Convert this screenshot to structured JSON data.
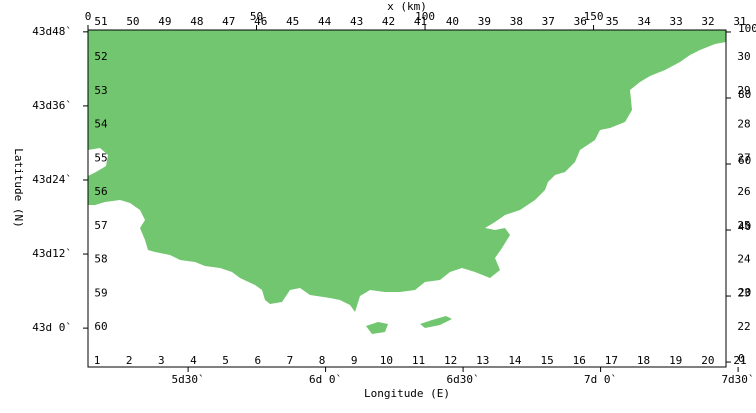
{
  "map": {
    "x_km_axis": {
      "label": "x (km)",
      "lim": [
        0,
        189.3
      ],
      "ticks": [
        0,
        50,
        100,
        150
      ]
    },
    "y_km_axis": {
      "lim": [
        -1.5,
        100.6
      ],
      "ticks": [
        0,
        20,
        40,
        60,
        80,
        100
      ]
    },
    "longitude_axis": {
      "label": "Longitude (E)",
      "lim": [
        5.136,
        7.456
      ],
      "ticks": [
        {
          "value": 5.5,
          "label": "5d30`"
        },
        {
          "value": 6.0,
          "label": "6d 0`"
        },
        {
          "value": 6.5,
          "label": "6d30`"
        },
        {
          "value": 7.0,
          "label": "7d 0`"
        },
        {
          "value": 7.5,
          "label": "7d30`"
        }
      ]
    },
    "latitude_axis": {
      "label": "Latitude (N)",
      "lim": [
        42.895,
        43.805
      ],
      "ticks": [
        {
          "value": 43.0,
          "label": "43d 0`"
        },
        {
          "value": 43.2,
          "label": "43d12`"
        },
        {
          "value": 43.4,
          "label": "43d24`"
        },
        {
          "value": 43.6,
          "label": "43d36`"
        },
        {
          "value": 43.8,
          "label": "43d48`"
        }
      ]
    },
    "perimeter_labels": {
      "top": [
        51,
        50,
        49,
        48,
        47,
        46,
        45,
        44,
        43,
        42,
        41,
        40,
        39,
        38,
        37,
        36,
        35,
        34,
        33,
        32,
        31
      ],
      "left": [
        52,
        53,
        54,
        55,
        56,
        57,
        58,
        59,
        60
      ],
      "bottom": [
        1,
        2,
        3,
        4,
        5,
        6,
        7,
        8,
        9,
        10,
        11,
        12,
        13,
        14,
        15,
        16,
        17,
        18,
        19,
        20,
        21
      ],
      "right": [
        22,
        23,
        24,
        25,
        26,
        27,
        28,
        29,
        30
      ]
    }
  }
}
